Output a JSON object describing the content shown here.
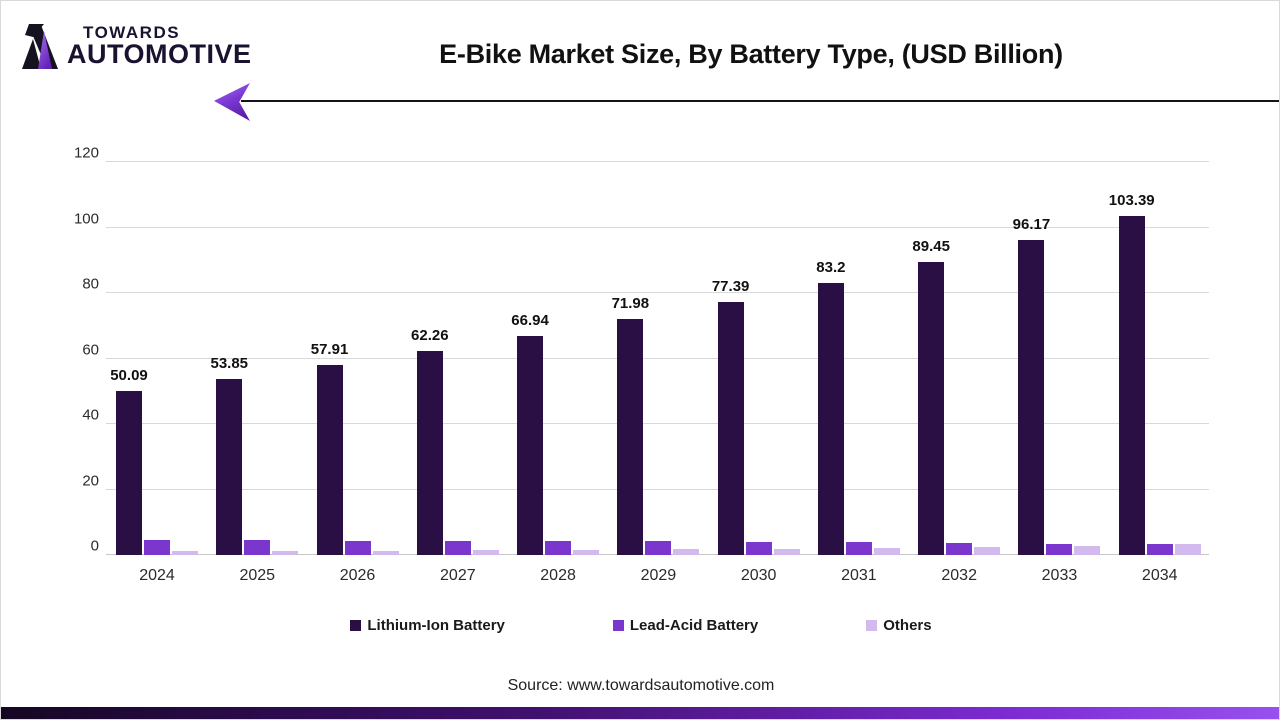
{
  "brand": {
    "line1": "TOWARDS",
    "line2": "AUTOMOTIVE"
  },
  "header": {
    "title": "E-Bike Market Size, By Battery Type, (USD Billion)"
  },
  "footer": {
    "source": "Source: www.towardsautomotive.com"
  },
  "colors": {
    "lithium": "#2A0F45",
    "lead_acid": "#7B36CD",
    "others": "#D2BAEE",
    "gridline": "#d9d9d9",
    "accent_arrow": "#7b39d4",
    "bottom_bar_start": "#150722",
    "bottom_bar_end": "#9850f0"
  },
  "chart_data": {
    "type": "bar",
    "title": "E-Bike Market Size, By Battery Type, (USD Billion)",
    "categories": [
      "2024",
      "2025",
      "2026",
      "2027",
      "2028",
      "2029",
      "2030",
      "2031",
      "2032",
      "2033",
      "2034"
    ],
    "series": [
      {
        "name": "Lithium-Ion Battery",
        "color": "#2A0F45",
        "values": [
          50.09,
          53.85,
          57.91,
          62.26,
          66.94,
          71.98,
          77.39,
          83.2,
          89.45,
          96.17,
          103.39
        ],
        "data_labels": true
      },
      {
        "name": "Lead-Acid Battery",
        "color": "#7B36CD",
        "values": [
          4.5,
          4.5,
          4.4,
          4.4,
          4.3,
          4.2,
          4.1,
          4.0,
          3.8,
          3.5,
          3.3
        ],
        "data_labels": false
      },
      {
        "name": "Others",
        "color": "#D2BAEE",
        "values": [
          1.1,
          1.1,
          1.3,
          1.4,
          1.6,
          1.7,
          1.9,
          2.2,
          2.5,
          2.9,
          3.4
        ],
        "data_labels": false
      }
    ],
    "ylim": [
      0,
      120
    ],
    "yticks": [
      0,
      20,
      40,
      60,
      80,
      100,
      120
    ],
    "xlabel": "",
    "ylabel": "",
    "grid": true,
    "legend_position": "bottom"
  }
}
